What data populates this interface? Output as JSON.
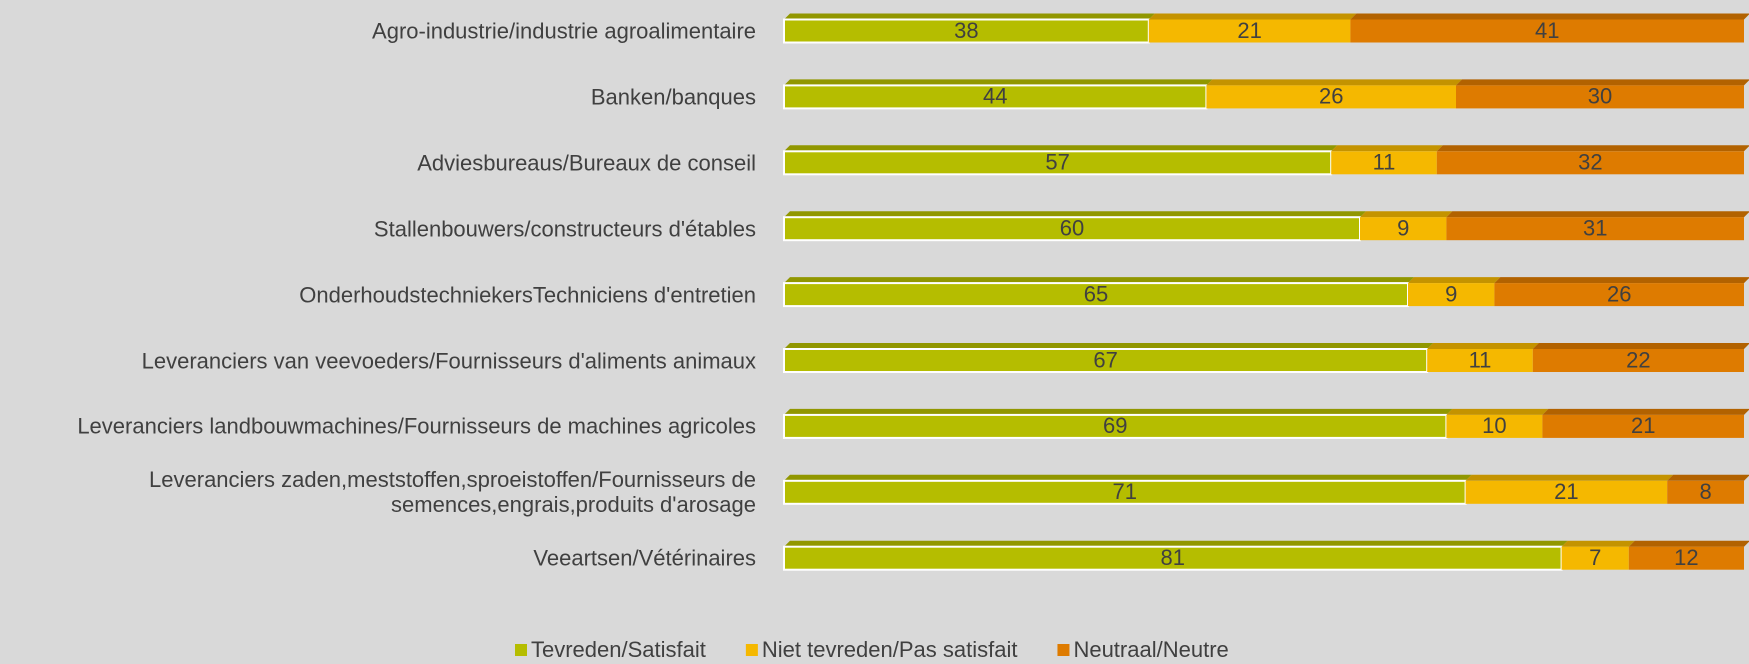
{
  "chart_data": {
    "type": "stacked-bar-horizontal",
    "categories": [
      "Agro-industrie/industrie agroalimentaire",
      "Banken/banques",
      "Adviesbureaus/Bureaux de conseil",
      "Stallenbouwers/constructeurs d'étables",
      "OnderhoudstechniekersTechniciens d'entretien",
      "Leveranciers van veevoeders/Fournisseurs d'aliments animaux",
      "Leveranciers landbouwmachines/Fournisseurs de machines agricoles",
      "Leveranciers zaden,meststoffen,sproeistoffen/Fournisseurs de semences,engrais,produits d'arosage",
      "Veeartsen/Vétérinaires"
    ],
    "series": [
      {
        "name": "Tevreden/Satisfait",
        "color": "#b5bd00",
        "values": [
          38,
          44,
          57,
          60,
          65,
          67,
          69,
          71,
          81
        ]
      },
      {
        "name": "Niet tevreden/Pas satisfait",
        "color": "#f5b800",
        "values": [
          21,
          26,
          11,
          9,
          9,
          11,
          10,
          21,
          7
        ]
      },
      {
        "name": "Neutraal/Neutre",
        "color": "#de7b00",
        "values": [
          41,
          30,
          32,
          31,
          26,
          22,
          21,
          8,
          12
        ]
      }
    ],
    "xlim": [
      0,
      100
    ],
    "legend": "bottom"
  }
}
